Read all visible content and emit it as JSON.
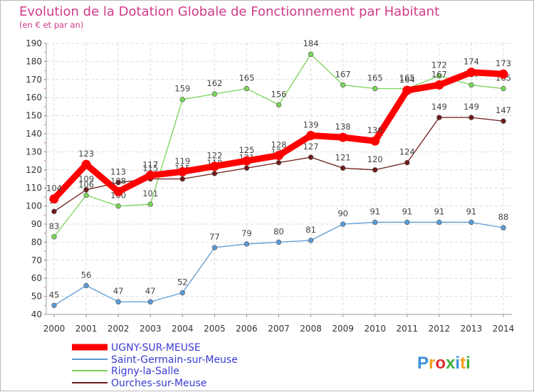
{
  "chart_data": {
    "type": "line",
    "title": "Evolution de la Dotation Globale de Fonctionnement par Habitant",
    "subtitle": "(en € et par an)",
    "x": [
      "2000",
      "2001",
      "2002",
      "2003",
      "2004",
      "2005",
      "2006",
      "2007",
      "2008",
      "2009",
      "2010",
      "2011",
      "2012",
      "2013",
      "2014"
    ],
    "ylim": [
      40,
      190
    ],
    "yticks": [
      40,
      50,
      60,
      70,
      80,
      90,
      100,
      110,
      120,
      130,
      140,
      150,
      160,
      170,
      180,
      190
    ],
    "grid": true,
    "legend": "bottom-left",
    "series": [
      {
        "name": "UGNY-SUR-MEUSE",
        "color": "#ff0000",
        "emphasis": true,
        "values": [
          104,
          123,
          108,
          117,
          119,
          122,
          125,
          128,
          139,
          138,
          136,
          164,
          167,
          174,
          173
        ]
      },
      {
        "name": "Saint-Germain-sur-Meuse",
        "color": "#5b9bd5",
        "values": [
          45,
          56,
          47,
          47,
          52,
          77,
          79,
          80,
          81,
          90,
          91,
          91,
          91,
          91,
          88
        ]
      },
      {
        "name": "Rigny-la-Salle",
        "color": "#79d45a",
        "values": [
          83,
          106,
          100,
          101,
          159,
          162,
          165,
          156,
          184,
          167,
          165,
          165,
          172,
          167,
          165
        ]
      },
      {
        "name": "Ourches-sur-Meuse",
        "color": "#6e1a1a",
        "values": [
          97,
          109,
          113,
          115,
          115,
          118,
          121,
          124,
          127,
          121,
          120,
          124,
          149,
          149,
          147
        ]
      }
    ]
  },
  "branding": {
    "logo_text": "Proxiti",
    "logo_colors": [
      "#3d8fd9",
      "#f0a020",
      "#e03030",
      "#40b040",
      "#3d8fd9",
      "#f0a020",
      "#40b040"
    ]
  }
}
